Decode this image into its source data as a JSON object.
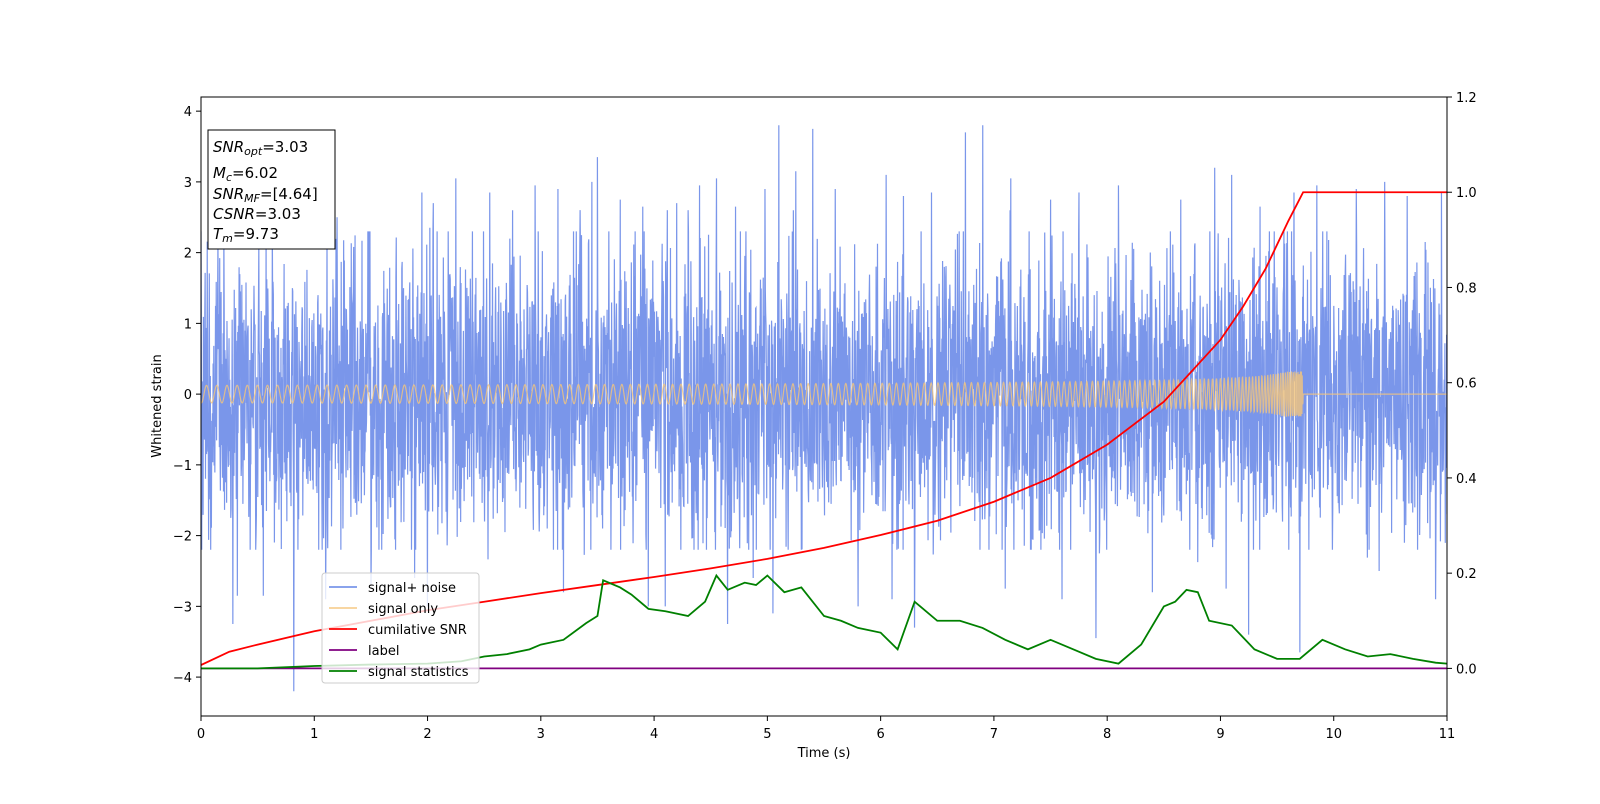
{
  "chart_data": {
    "type": "line",
    "title": "",
    "xlabel": "Time (s)",
    "ylabel": "Whitened strain",
    "xlim": [
      0,
      11
    ],
    "ylim": [
      -4.55,
      4.2
    ],
    "y2lim": [
      -0.1,
      1.2
    ],
    "xticks": [
      0,
      1,
      2,
      3,
      4,
      5,
      6,
      7,
      8,
      9,
      10,
      11
    ],
    "xtick_labels": [
      "0",
      "1",
      "2",
      "3",
      "4",
      "5",
      "6",
      "7",
      "8",
      "9",
      "10",
      "11"
    ],
    "yticks": [
      -4,
      -3,
      -2,
      -1,
      0,
      1,
      2,
      3,
      4
    ],
    "ytick_labels": [
      "−4",
      "−3",
      "−2",
      "−1",
      "0",
      "1",
      "2",
      "3",
      "4"
    ],
    "y2ticks": [
      0.0,
      0.2,
      0.4,
      0.6,
      0.8,
      1.0,
      1.2
    ],
    "y2tick_labels": [
      "0.0",
      "0.2",
      "0.4",
      "0.6",
      "0.8",
      "1.0",
      "1.2"
    ],
    "grid": false,
    "legend_placement": "lower-left",
    "info_box": {
      "snr_opt": {
        "base": "SNR",
        "sub": "opt",
        "value": "=3.03"
      },
      "mc": {
        "base": "M",
        "sub": "c",
        "value": "=6.02"
      },
      "snr_mf": {
        "base": "SNR",
        "sub": "MF",
        "value": "=[4.64]"
      },
      "csnr": {
        "base": "CSNR",
        "value": "=3.03"
      },
      "tm": {
        "base": "T",
        "sub": "m",
        "value": "=9.73"
      }
    },
    "series": [
      {
        "name": "signal+ noise",
        "color": "#4169e1",
        "axis": "left",
        "kind": "noise",
        "mean": 0,
        "typical_range": [
          -2.2,
          2.3
        ],
        "extremes": [
          -4.2,
          3.82
        ],
        "spikes": [
          [
            0.15,
            2.2
          ],
          [
            0.28,
            -3.25
          ],
          [
            0.32,
            -2.85
          ],
          [
            0.55,
            -2.85
          ],
          [
            0.82,
            -4.2
          ],
          [
            1.2,
            2.5
          ],
          [
            1.95,
            2.85
          ],
          [
            2.05,
            2.7
          ],
          [
            2.25,
            3.05
          ],
          [
            2.55,
            2.85
          ],
          [
            2.75,
            2.6
          ],
          [
            2.95,
            2.95
          ],
          [
            3.15,
            2.9
          ],
          [
            3.45,
            3.0
          ],
          [
            3.5,
            3.35
          ],
          [
            3.7,
            2.75
          ],
          [
            3.9,
            2.65
          ],
          [
            4.2,
            2.7
          ],
          [
            4.3,
            2.6
          ],
          [
            4.4,
            2.95
          ],
          [
            4.55,
            3.05
          ],
          [
            4.72,
            2.65
          ],
          [
            4.98,
            2.9
          ],
          [
            5.1,
            3.8
          ],
          [
            5.25,
            3.15
          ],
          [
            5.4,
            3.75
          ],
          [
            5.6,
            2.9
          ],
          [
            5.8,
            3.15
          ],
          [
            6.05,
            3.1
          ],
          [
            6.2,
            2.8
          ],
          [
            6.45,
            2.85
          ],
          [
            6.75,
            3.7
          ],
          [
            6.9,
            3.8
          ],
          [
            7.15,
            3.05
          ],
          [
            7.5,
            2.75
          ],
          [
            7.75,
            2.85
          ],
          [
            8.1,
            2.95
          ],
          [
            8.4,
            3.05
          ],
          [
            8.65,
            2.75
          ],
          [
            8.95,
            3.2
          ],
          [
            9.1,
            3.1
          ],
          [
            9.35,
            2.65
          ],
          [
            9.65,
            2.85
          ],
          [
            9.85,
            2.95
          ],
          [
            10.2,
            2.9
          ],
          [
            10.45,
            3.0
          ],
          [
            10.65,
            2.8
          ],
          [
            10.95,
            2.85
          ],
          [
            1.1,
            -2.9
          ],
          [
            1.5,
            -2.7
          ],
          [
            2.0,
            -3.0
          ],
          [
            3.2,
            -2.8
          ],
          [
            3.95,
            -3.0
          ],
          [
            4.1,
            -3.0
          ],
          [
            4.65,
            -3.25
          ],
          [
            5.05,
            -3.1
          ],
          [
            5.8,
            -3.0
          ],
          [
            6.1,
            -2.9
          ],
          [
            6.3,
            -3.3
          ],
          [
            7.1,
            -2.75
          ],
          [
            7.6,
            -2.9
          ],
          [
            7.9,
            -3.45
          ],
          [
            8.4,
            -2.8
          ],
          [
            9.05,
            -2.75
          ],
          [
            9.25,
            -3.4
          ],
          [
            9.7,
            -3.65
          ],
          [
            10.4,
            -2.5
          ],
          [
            10.9,
            -2.9
          ]
        ]
      },
      {
        "name": "signal only",
        "color": "#f5c67a",
        "axis": "left",
        "kind": "chirp",
        "merger_time": 9.73,
        "peak_amplitude": 0.32
      },
      {
        "name": "cumilative SNR",
        "color": "#ff0000",
        "axis": "right",
        "x": [
          0.0,
          0.25,
          0.5,
          1.0,
          1.5,
          2.0,
          2.5,
          3.0,
          3.5,
          4.0,
          4.5,
          5.0,
          5.5,
          6.0,
          6.5,
          7.0,
          7.5,
          8.0,
          8.5,
          9.0,
          9.2,
          9.4,
          9.6,
          9.73,
          11.0
        ],
        "values": [
          0.007,
          0.035,
          0.05,
          0.078,
          0.1,
          0.122,
          0.14,
          0.158,
          0.175,
          0.192,
          0.21,
          0.23,
          0.253,
          0.28,
          0.31,
          0.35,
          0.4,
          0.47,
          0.56,
          0.69,
          0.76,
          0.84,
          0.94,
          1.0,
          1.0
        ]
      },
      {
        "name": "label",
        "color": "#800080",
        "axis": "right",
        "x": [
          0,
          11
        ],
        "values": [
          0.0,
          0.0
        ]
      },
      {
        "name": "signal statistics",
        "color": "#008000",
        "axis": "right",
        "x": [
          0.0,
          0.5,
          1.0,
          1.5,
          2.0,
          2.3,
          2.5,
          2.7,
          2.9,
          3.0,
          3.2,
          3.4,
          3.5,
          3.55,
          3.7,
          3.8,
          3.95,
          4.1,
          4.3,
          4.45,
          4.55,
          4.65,
          4.8,
          4.9,
          5.0,
          5.15,
          5.3,
          5.5,
          5.65,
          5.8,
          6.0,
          6.15,
          6.3,
          6.35,
          6.5,
          6.7,
          6.9,
          7.1,
          7.3,
          7.5,
          7.7,
          7.9,
          8.1,
          8.3,
          8.5,
          8.6,
          8.7,
          8.8,
          8.9,
          9.1,
          9.3,
          9.5,
          9.7,
          9.9,
          10.1,
          10.3,
          10.5,
          10.7,
          10.9,
          11.0
        ],
        "values": [
          0.0,
          0.0,
          0.005,
          0.008,
          0.01,
          0.015,
          0.025,
          0.03,
          0.04,
          0.05,
          0.06,
          0.095,
          0.11,
          0.185,
          0.17,
          0.155,
          0.125,
          0.12,
          0.11,
          0.14,
          0.195,
          0.165,
          0.18,
          0.175,
          0.195,
          0.16,
          0.17,
          0.11,
          0.1,
          0.085,
          0.075,
          0.04,
          0.14,
          0.13,
          0.1,
          0.1,
          0.085,
          0.06,
          0.04,
          0.06,
          0.04,
          0.02,
          0.01,
          0.05,
          0.13,
          0.14,
          0.165,
          0.16,
          0.1,
          0.09,
          0.04,
          0.02,
          0.02,
          0.06,
          0.04,
          0.025,
          0.03,
          0.02,
          0.012,
          0.01
        ]
      }
    ]
  }
}
